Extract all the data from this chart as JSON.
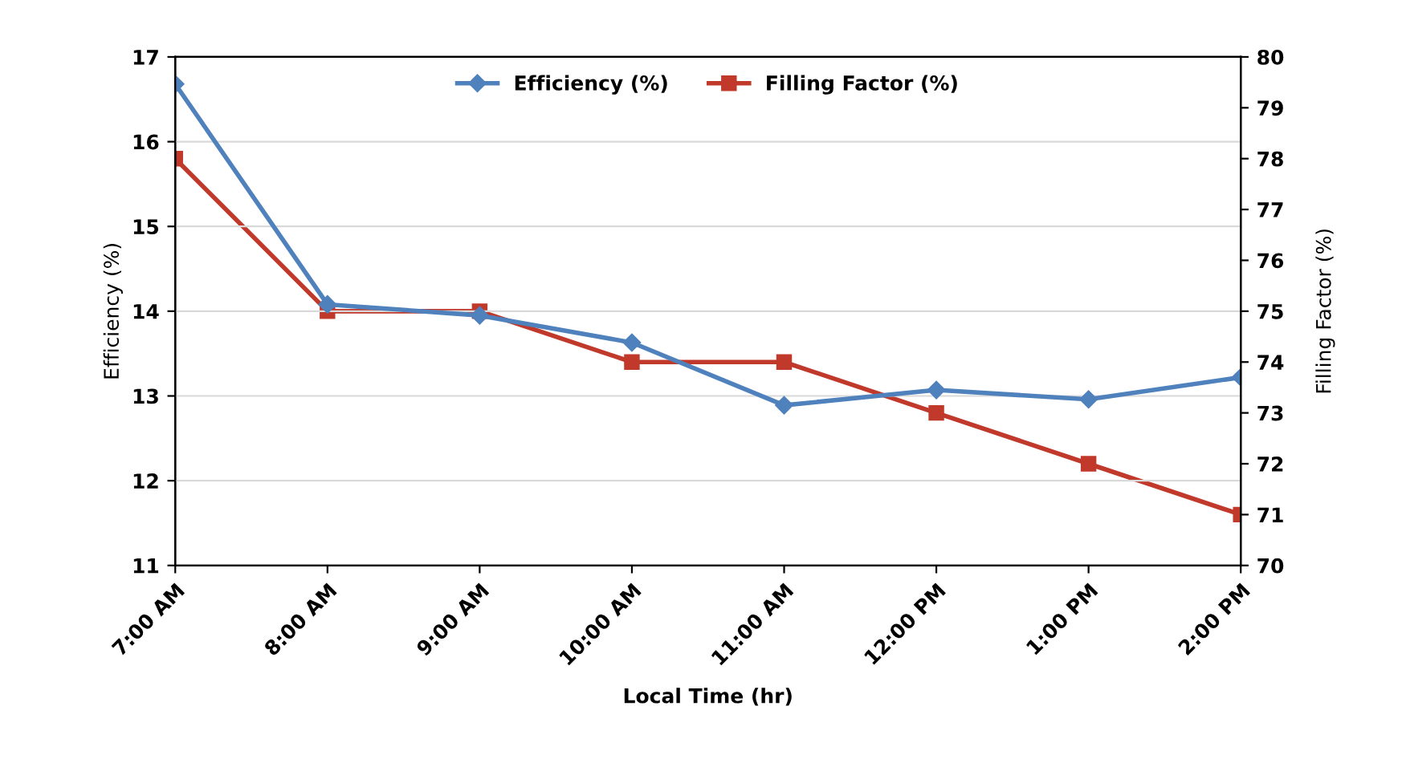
{
  "chart_data": {
    "type": "line",
    "xlabel": "Local Time (hr)",
    "ylabel": "Efficiency (%)",
    "y2label": "Filling Factor (%)",
    "categories": [
      "7:00 AM",
      "8:00 AM",
      "9:00 AM",
      "10:00 AM",
      "11:00 AM",
      "12:00 PM",
      "1:00 PM",
      "2:00 PM"
    ],
    "series": [
      {
        "name": "Efficiency (%)",
        "color": "#4f81bd",
        "marker": "diamond",
        "values": [
          16.68,
          14.08,
          13.95,
          13.63,
          12.89,
          13.07,
          12.96,
          13.22
        ]
      },
      {
        "name": "Filling Factor (%)",
        "color": "#c0392b",
        "marker": "square",
        "axis": "y2",
        "values": [
          78,
          75,
          75,
          74,
          74,
          73,
          72,
          71
        ]
      }
    ],
    "ylim": [
      11,
      17
    ],
    "yticks": [
      11,
      12,
      13,
      14,
      15,
      16,
      17
    ],
    "y2lim": [
      70,
      80
    ],
    "y2ticks": [
      70,
      71,
      72,
      73,
      74,
      75,
      76,
      77,
      78,
      79,
      80
    ],
    "grid": "y",
    "legend": "top"
  }
}
